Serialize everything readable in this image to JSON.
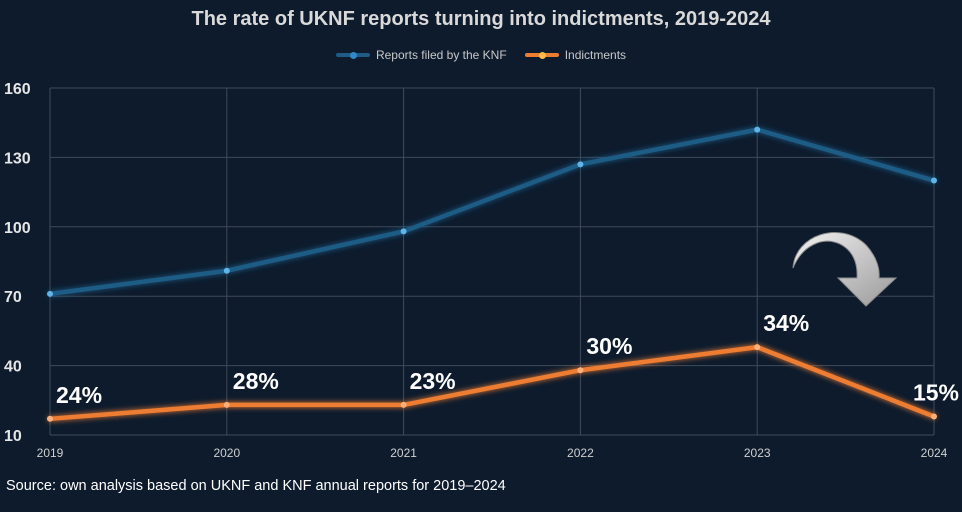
{
  "chart_data": {
    "type": "line",
    "title": "The rate of UKNF reports turning into indictments, 2019-2024",
    "x": [
      "2019",
      "2020",
      "2021",
      "2022",
      "2023",
      "2024"
    ],
    "ylim": [
      10,
      160
    ],
    "yticks": [
      "10",
      "40",
      "70",
      "100",
      "130",
      "160"
    ],
    "grid": true,
    "legend": "top-center",
    "series": [
      {
        "name": "Reports filed by the KNF",
        "values": [
          71,
          81,
          98,
          127,
          142,
          120
        ],
        "color": "#1f5b85"
      },
      {
        "name": "Indictments",
        "values": [
          17,
          23,
          23,
          38,
          48,
          18
        ],
        "color": "#ed7d31",
        "labels": [
          "24%",
          "28%",
          "23%",
          "30%",
          "34%",
          "15%"
        ]
      }
    ],
    "annotation": "arrow-down-icon"
  },
  "footer": {
    "source": "Source: own analysis based on UKNF and KNF annual reports for 2019–2024"
  }
}
